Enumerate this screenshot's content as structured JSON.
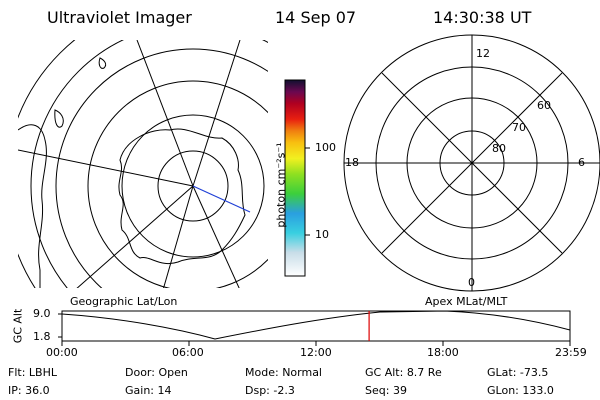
{
  "header": {
    "title": "Ultraviolet Imager",
    "date": "14 Sep 07",
    "time": "14:30:38 UT"
  },
  "left_map": {
    "label": "Geographic Lat/Lon"
  },
  "right_map": {
    "label": "Apex MLat/MLT",
    "mlt_labels": {
      "top": "12",
      "right": "6",
      "bottom": "0",
      "left": "18"
    },
    "lat_labels": [
      "60",
      "70",
      "80"
    ]
  },
  "colorbar": {
    "unit_label": "photon cm⁻²s⁻¹",
    "tick_100": "100",
    "tick_10": "10"
  },
  "altitude_plot": {
    "axis_label": "GC Alt",
    "y_ticks": [
      "9.0",
      "1.8"
    ],
    "x_ticks": [
      "00:00",
      "06:00",
      "12:00",
      "18:00",
      "23:59"
    ],
    "marker_time": "14:30",
    "marker_color": "#dd0000"
  },
  "info": {
    "row1": [
      {
        "key": "Flt:",
        "value": "LBHL"
      },
      {
        "key": "Door:",
        "value": "Open"
      },
      {
        "key": "Mode:",
        "value": "Normal"
      },
      {
        "key": "GC Alt:",
        "value": "8.7 Re"
      },
      {
        "key": "GLat:",
        "value": "-73.5"
      }
    ],
    "row2": [
      {
        "key": "IP:",
        "value": "36.0"
      },
      {
        "key": "Gain:",
        "value": "14"
      },
      {
        "key": "Dsp:",
        "value": "-2.3"
      },
      {
        "key": "Seq:",
        "value": "39"
      },
      {
        "key": "GLon:",
        "value": "133.0"
      }
    ]
  }
}
